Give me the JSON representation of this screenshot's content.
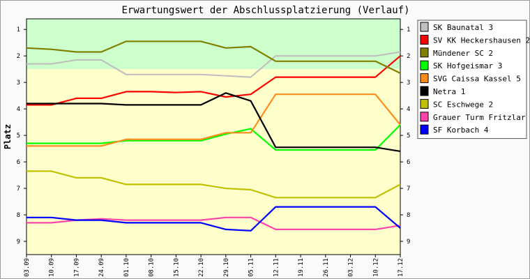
{
  "chart_data": {
    "type": "line",
    "title": "Erwartungswert der Abschlussplatzierung (Verlauf)",
    "ylabel": "Platz",
    "xlabel": "",
    "ylim": [
      0.6,
      9.5
    ],
    "y_inverted": true,
    "grid": false,
    "legend_position": "right",
    "y_ticks": [
      1,
      2,
      3,
      4,
      5,
      6,
      7,
      8,
      9
    ],
    "x": [
      "03.09",
      "10.09",
      "17.09",
      "24.09",
      "01.10",
      "08.10",
      "15.10",
      "22.10",
      "29.10",
      "05.11",
      "12.11",
      "19.11",
      "26.11",
      "03.12",
      "10.12",
      "17.12"
    ],
    "bands": [
      {
        "from": 0.6,
        "to": 2.5,
        "color": "#ccffcc"
      },
      {
        "from": 2.5,
        "to": 9.5,
        "color": "#ffffcc"
      }
    ],
    "series": [
      {
        "name": "SK Baunatal 3",
        "color": "#c0c0c0",
        "values": [
          2.3,
          2.3,
          2.15,
          2.15,
          2.7,
          2.7,
          2.7,
          2.7,
          2.75,
          2.8,
          2.0,
          2.0,
          2.0,
          2.0,
          2.0,
          1.85
        ]
      },
      {
        "name": "SV KK Heckershausen 2",
        "color": "#ff0000",
        "values": [
          3.85,
          3.85,
          3.6,
          3.6,
          3.35,
          3.35,
          3.38,
          3.35,
          3.55,
          3.45,
          2.8,
          2.8,
          2.8,
          2.8,
          2.8,
          2.0
        ]
      },
      {
        "name": "Mündener SC 2",
        "color": "#808000",
        "values": [
          1.7,
          1.75,
          1.85,
          1.85,
          1.45,
          1.45,
          1.45,
          1.45,
          1.7,
          1.65,
          2.2,
          2.2,
          2.2,
          2.2,
          2.2,
          2.65
        ]
      },
      {
        "name": "SK Hofgeismar 3",
        "color": "#00ff00",
        "values": [
          5.3,
          5.3,
          5.3,
          5.3,
          5.2,
          5.2,
          5.2,
          5.2,
          4.95,
          4.75,
          5.55,
          5.55,
          5.55,
          5.55,
          5.55,
          4.6
        ]
      },
      {
        "name": "SVG Caissa Kassel 5",
        "color": "#ff8c1a",
        "values": [
          5.4,
          5.4,
          5.4,
          5.4,
          5.15,
          5.15,
          5.15,
          5.15,
          4.9,
          4.9,
          3.45,
          3.45,
          3.45,
          3.45,
          3.45,
          4.6
        ]
      },
      {
        "name": "Netra 1",
        "color": "#000000",
        "values": [
          3.8,
          3.8,
          3.8,
          3.8,
          3.85,
          3.85,
          3.85,
          3.85,
          3.4,
          3.7,
          5.45,
          5.45,
          5.45,
          5.45,
          5.45,
          5.6
        ]
      },
      {
        "name": "SC Eschwege 2",
        "color": "#c0c000",
        "values": [
          6.35,
          6.35,
          6.6,
          6.6,
          6.85,
          6.85,
          6.85,
          6.85,
          7.0,
          7.05,
          7.35,
          7.35,
          7.35,
          7.35,
          7.35,
          6.85
        ]
      },
      {
        "name": "Grauer Turm Fritzlar 3",
        "color": "#ff44aa",
        "values": [
          8.3,
          8.3,
          8.2,
          8.15,
          8.2,
          8.2,
          8.2,
          8.2,
          8.1,
          8.1,
          8.55,
          8.55,
          8.55,
          8.55,
          8.55,
          8.4
        ]
      },
      {
        "name": "SF Korbach 4",
        "color": "#0000ff",
        "values": [
          8.1,
          8.1,
          8.2,
          8.2,
          8.3,
          8.3,
          8.3,
          8.3,
          8.55,
          8.6,
          7.7,
          7.7,
          7.7,
          7.7,
          7.7,
          8.5
        ]
      }
    ]
  }
}
